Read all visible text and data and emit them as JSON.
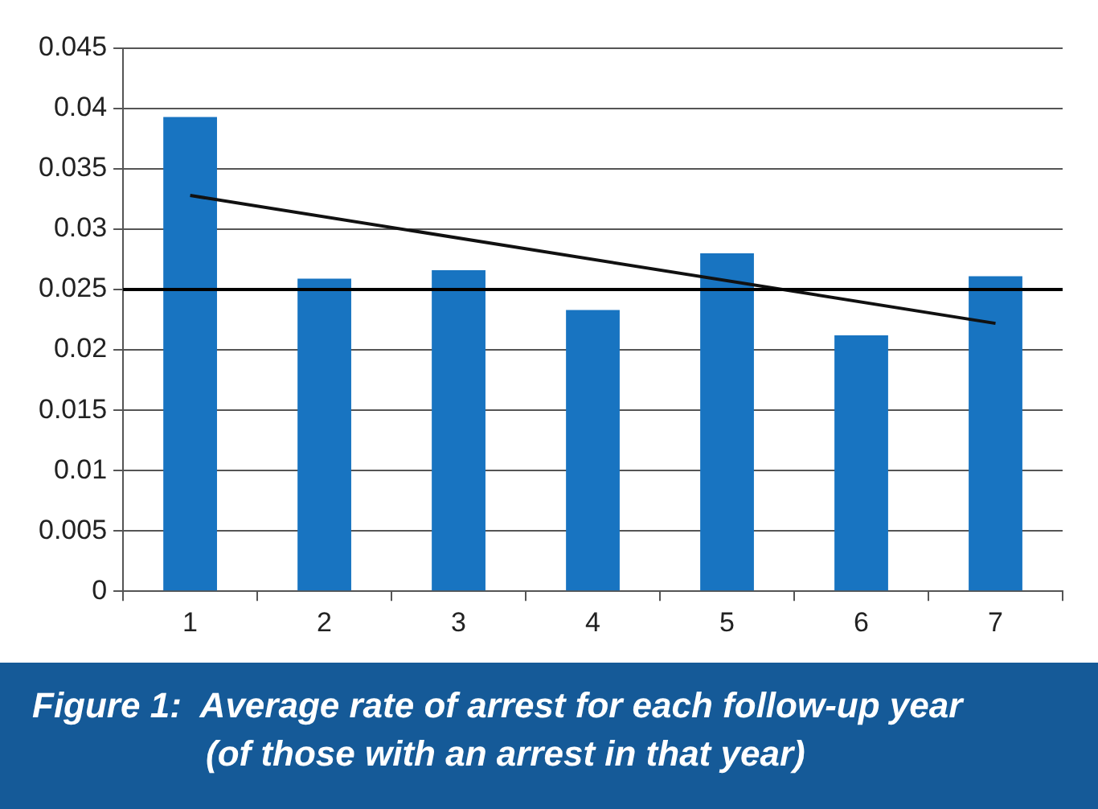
{
  "chart_data": {
    "type": "bar",
    "title": "Figure 1:  Average rate of arrest for each follow-up year",
    "subtitle": "(of those with an arrest in that year)",
    "categories": [
      "1",
      "2",
      "3",
      "4",
      "5",
      "6",
      "7"
    ],
    "series": [
      {
        "color": "#1874c1",
        "values": [
          0.0393,
          0.0259,
          0.0266,
          0.0233,
          0.028,
          0.0212,
          0.0261
        ]
      },
      {
        "type": "line",
        "color": "#111111",
        "x": [
          "1",
          "7"
        ],
        "values": [
          0.0328,
          0.0222
        ]
      }
    ],
    "ylim": [
      0,
      0.045
    ],
    "yticks": [
      0,
      0.005,
      0.01,
      0.015,
      0.02,
      0.025,
      0.03,
      0.035,
      0.04,
      0.045
    ],
    "ref_lines": [
      {
        "axis": "y",
        "value": 0.025,
        "color": "#000000"
      }
    ],
    "grid": "y",
    "legend": false
  }
}
